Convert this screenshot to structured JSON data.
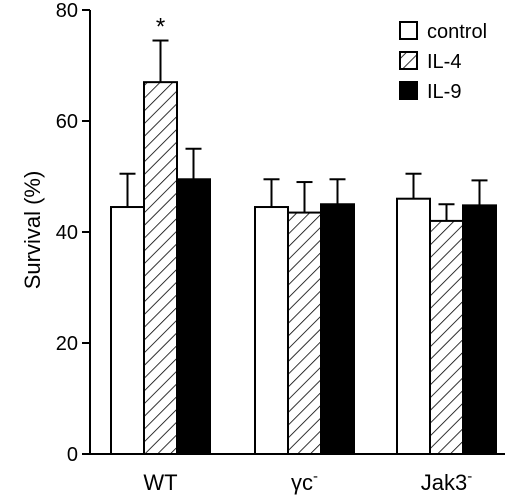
{
  "chart_data": {
    "type": "bar",
    "categories": [
      "WT",
      "γc",
      "Jak3"
    ],
    "category_superscripts": [
      "",
      "-",
      "-"
    ],
    "series": [
      {
        "name": "control",
        "values": [
          44.5,
          44.5,
          46
        ],
        "errors": [
          6,
          5,
          4.5
        ],
        "fill": "white"
      },
      {
        "name": "IL-4",
        "values": [
          67,
          43.5,
          42
        ],
        "errors": [
          7.5,
          5.5,
          3
        ],
        "fill": "hatch"
      },
      {
        "name": "IL-9",
        "values": [
          49.5,
          45,
          44.8
        ],
        "errors": [
          5.5,
          4.5,
          4.5
        ],
        "fill": "black"
      }
    ],
    "ylabel": "Survival (%)",
    "ylim": [
      0,
      80
    ],
    "yticks": [
      "0",
      "20",
      "40",
      "60",
      "80"
    ],
    "annotations": [
      {
        "text": "*",
        "category": "WT",
        "series": "IL-4"
      }
    ],
    "legend_position": "top-right",
    "grid": false
  }
}
